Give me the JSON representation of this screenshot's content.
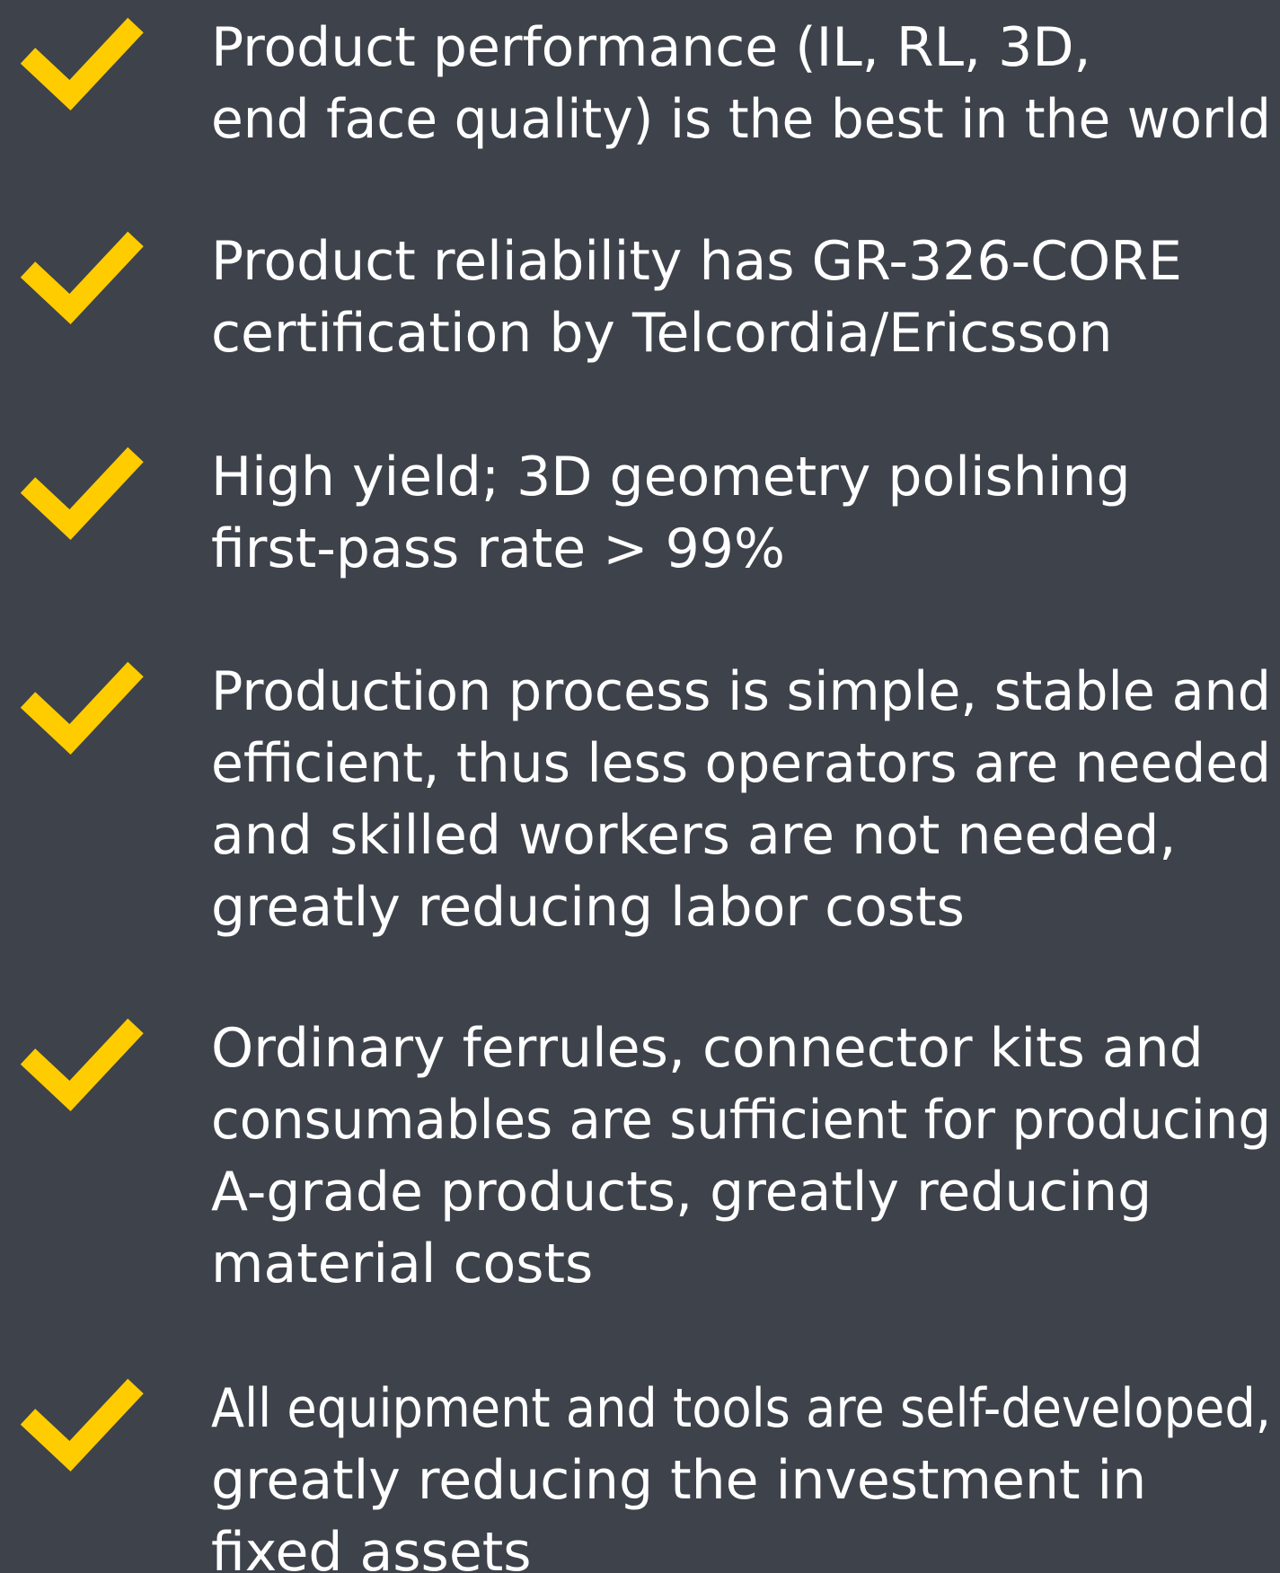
{
  "items": [
    {
      "lines": [
        "Product performance (IL, RL, 3D,",
        "end face quality) is the best in the world"
      ]
    },
    {
      "lines": [
        "Product reliability has GR-326-CORE",
        "certification by Telcordia/Ericsson"
      ]
    },
    {
      "lines": [
        "High yield; 3D geometry polishing",
        "first-pass rate > 99%"
      ]
    },
    {
      "lines": [
        "Production process is simple, stable and",
        "efficient, thus less operators are needed",
        "and skilled workers are not needed,",
        "greatly reducing labor costs"
      ]
    },
    {
      "lines": [
        "Ordinary ferrules, connector kits and",
        "consumables are sufficient for producing",
        "A-grade products, greatly reducing",
        "material costs"
      ]
    },
    {
      "lines": [
        "All equipment and tools are self-developed,",
        "greatly reducing the investment in",
        "fixed assets"
      ]
    }
  ]
}
